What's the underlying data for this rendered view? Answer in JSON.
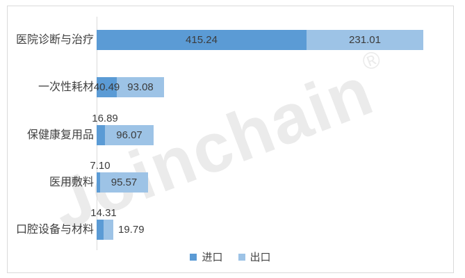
{
  "chart_data": {
    "type": "bar",
    "orientation": "horizontal_stacked",
    "title": "",
    "xlabel": "",
    "ylabel": "",
    "xlim": [
      0,
      700
    ],
    "grid": false,
    "legend_position": "bottom-center",
    "categories": [
      "医院诊断与治疗",
      "一次性耗材",
      "保健康复用品",
      "医用敷料",
      "口腔设备与材料"
    ],
    "series": [
      {
        "name": "进口",
        "color": "#5B9BD5",
        "values": [
          415.24,
          40.49,
          16.89,
          7.1,
          14.31
        ],
        "labels": [
          "415.24",
          "40.49",
          "16.89",
          "7.10",
          "14.31"
        ],
        "label_placement": [
          "inside",
          "inside",
          "above",
          "above",
          "above"
        ]
      },
      {
        "name": "出口",
        "color": "#9DC3E6",
        "values": [
          231.01,
          93.08,
          96.07,
          95.57,
          19.79
        ],
        "labels": [
          "231.01",
          "93.08",
          "96.07",
          "95.57",
          "19.79"
        ],
        "label_placement": [
          "inside",
          "inside",
          "inside",
          "inside",
          "right"
        ]
      }
    ]
  },
  "legend": {
    "items": [
      {
        "label": "进口",
        "color": "#5B9BD5"
      },
      {
        "label": "出口",
        "color": "#9DC3E6"
      }
    ]
  },
  "watermark": {
    "text": "Joinchain",
    "registered": "®"
  },
  "colors": {
    "import_bar": "#5B9BD5",
    "export_bar": "#9DC3E6",
    "axis_line": "#D9D9D9",
    "border": "#D9D9D9",
    "value_label_text": "#3B3B3B",
    "category_text": "#404040",
    "legend_text": "#444444",
    "watermark_text": "#EBEBEB",
    "background": "#FFFFFF"
  }
}
